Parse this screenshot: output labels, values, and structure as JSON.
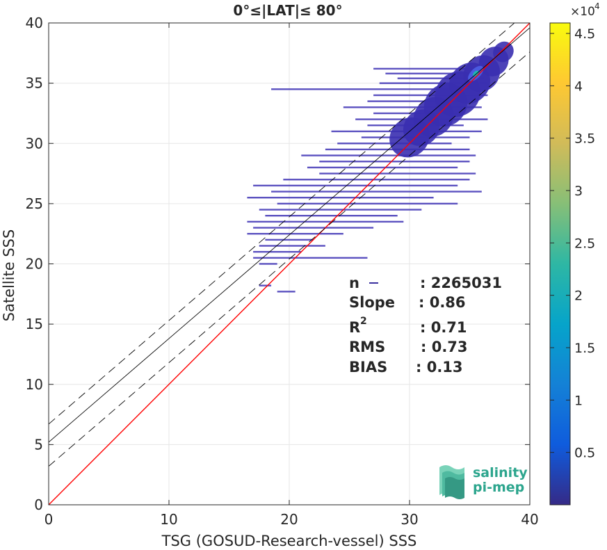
{
  "chart_data": {
    "type": "scatter",
    "title": "0°≤|LAT|≤ 80°",
    "xlabel": "TSG (GOSUD-Research-vessel) SSS",
    "ylabel": "Satellite SSS",
    "xlim": [
      0,
      40
    ],
    "ylim": [
      0,
      40
    ],
    "xticks": [
      "0",
      "10",
      "20",
      "30",
      "40"
    ],
    "yticks": [
      "0",
      "5",
      "10",
      "15",
      "20",
      "25",
      "30",
      "35",
      "40"
    ],
    "grid": true,
    "density": {
      "description": "2-D histogram density of collocated points",
      "dense_core": {
        "x": 35.5,
        "y": 35.8
      },
      "streaks": [
        {
          "y": 36.2,
          "x": [
            27,
            35.5
          ]
        },
        {
          "y": 35.8,
          "x": [
            28,
            36
          ]
        },
        {
          "y": 35.4,
          "x": [
            29,
            36.2
          ]
        },
        {
          "y": 35.0,
          "x": [
            27.5,
            36.5
          ]
        },
        {
          "y": 34.5,
          "x": [
            18.5,
            35
          ]
        },
        {
          "y": 34.0,
          "x": [
            27,
            36.5
          ]
        },
        {
          "y": 33.5,
          "x": [
            26.5,
            35
          ]
        },
        {
          "y": 33.0,
          "x": [
            24.5,
            36
          ]
        },
        {
          "y": 32.5,
          "x": [
            27,
            34
          ]
        },
        {
          "y": 32.0,
          "x": [
            25.5,
            36.5
          ]
        },
        {
          "y": 31.5,
          "x": [
            26.5,
            34.5
          ]
        },
        {
          "y": 31.0,
          "x": [
            23.5,
            36
          ]
        },
        {
          "y": 30.5,
          "x": [
            26,
            35
          ]
        },
        {
          "y": 30.0,
          "x": [
            24,
            33.5
          ]
        },
        {
          "y": 29.5,
          "x": [
            23,
            35
          ]
        },
        {
          "y": 29.0,
          "x": [
            21,
            35.5
          ]
        },
        {
          "y": 28.5,
          "x": [
            22.5,
            35
          ]
        },
        {
          "y": 28.0,
          "x": [
            21.5,
            34
          ]
        },
        {
          "y": 27.5,
          "x": [
            22.5,
            35.5
          ]
        },
        {
          "y": 27.0,
          "x": [
            19.5,
            35
          ]
        },
        {
          "y": 26.5,
          "x": [
            17,
            34
          ]
        },
        {
          "y": 26.0,
          "x": [
            18.5,
            36
          ]
        },
        {
          "y": 25.5,
          "x": [
            16.5,
            32
          ]
        },
        {
          "y": 25.0,
          "x": [
            19,
            34
          ]
        },
        {
          "y": 24.5,
          "x": [
            17.5,
            31
          ]
        },
        {
          "y": 24.0,
          "x": [
            18,
            29
          ]
        },
        {
          "y": 23.5,
          "x": [
            16.5,
            29.5
          ]
        },
        {
          "y": 23.0,
          "x": [
            17,
            27
          ]
        },
        {
          "y": 22.5,
          "x": [
            16.5,
            24.5
          ]
        },
        {
          "y": 22.0,
          "x": [
            18,
            22
          ]
        },
        {
          "y": 21.5,
          "x": [
            17.5,
            23
          ]
        },
        {
          "y": 21.0,
          "x": [
            17,
            21
          ]
        },
        {
          "y": 20.5,
          "x": [
            17,
            26.5
          ]
        },
        {
          "y": 20.0,
          "x": [
            17.5,
            19
          ]
        },
        {
          "y": 18.2,
          "x": [
            17.5,
            18.5
          ]
        },
        {
          "y": 17.7,
          "x": [
            19,
            20.5
          ]
        }
      ]
    },
    "reference_lines": [
      {
        "name": "1:1",
        "color": "#ff0000",
        "style": "solid",
        "slope": 1,
        "intercept": 0
      },
      {
        "name": "regression",
        "color": "#000000",
        "style": "solid",
        "slope": 0.86,
        "intercept": 5.2
      },
      {
        "name": "regression + offset",
        "color": "#000000",
        "style": "dashed",
        "slope": 0.86,
        "intercept": 6.7
      },
      {
        "name": "regression - offset",
        "color": "#000000",
        "style": "dashed",
        "slope": 0.86,
        "intercept": 3.2
      }
    ],
    "stats": [
      {
        "label": "n",
        "value": ": 2265031"
      },
      {
        "label": "Slope",
        "value": ": 0.86"
      },
      {
        "label": "R",
        "sup": "2",
        "value": ": 0.71"
      },
      {
        "label": "RMS",
        "value": ": 0.73"
      },
      {
        "label": "BIAS",
        "value": ": 0.13"
      }
    ],
    "colorbar": {
      "exponent_label": "×10",
      "exponent": "4",
      "min": 0,
      "max": 4.6,
      "ticks": [
        "0.5",
        "1",
        "1.5",
        "2",
        "2.5",
        "3",
        "3.5",
        "4",
        "4.5"
      ],
      "colormap": [
        "#352a87",
        "#0f5cdd",
        "#1481d6",
        "#06a4ca",
        "#2eb7a4",
        "#87bf77",
        "#d1bb59",
        "#fec832",
        "#f9fb0e"
      ]
    }
  },
  "logo": {
    "line1": "salinity",
    "line2": "pi-mep",
    "color": "#2ca58d"
  }
}
